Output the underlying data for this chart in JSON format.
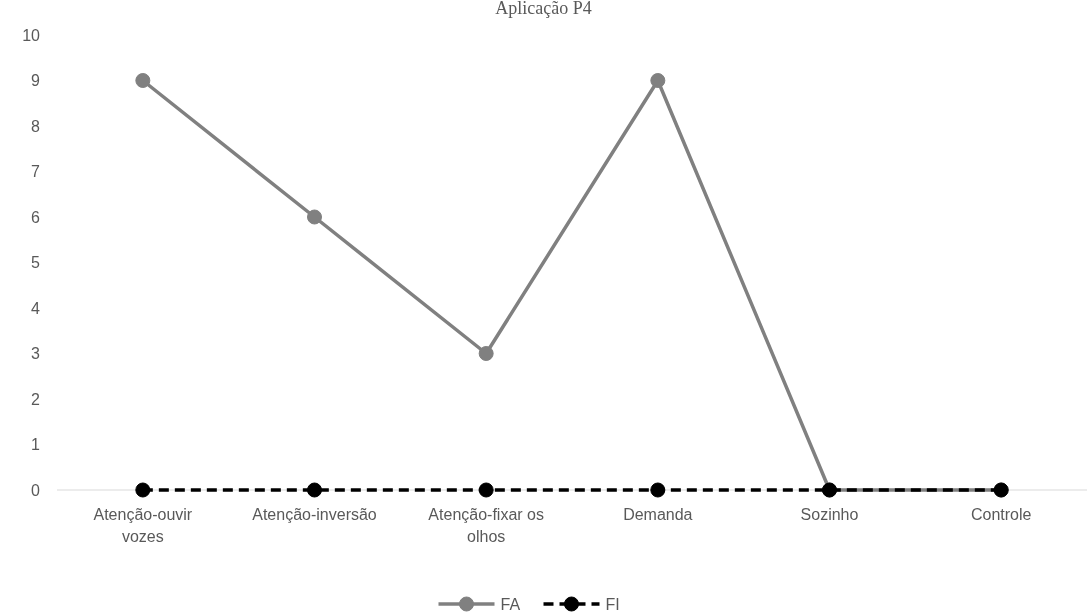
{
  "chart_data": {
    "type": "line",
    "title": "Aplicação P4",
    "categories": [
      "Atenção-ouvir vozes",
      "Atenção-inversão",
      "Atenção-fixar os olhos",
      "Demanda",
      "Sozinho",
      "Controle"
    ],
    "series": [
      {
        "name": "FA",
        "color": "#808080",
        "values": [
          9,
          6,
          3,
          9,
          0,
          0
        ],
        "line_style": "solid"
      },
      {
        "name": "FI",
        "color": "#000000",
        "values": [
          0,
          0,
          0,
          0,
          0,
          0
        ],
        "line_style": "dashed"
      }
    ],
    "ylim": [
      0,
      10
    ],
    "yticks": [
      0,
      1,
      2,
      3,
      4,
      5,
      6,
      7,
      8,
      9,
      10
    ],
    "marker": "circle",
    "legend": "bottom"
  }
}
